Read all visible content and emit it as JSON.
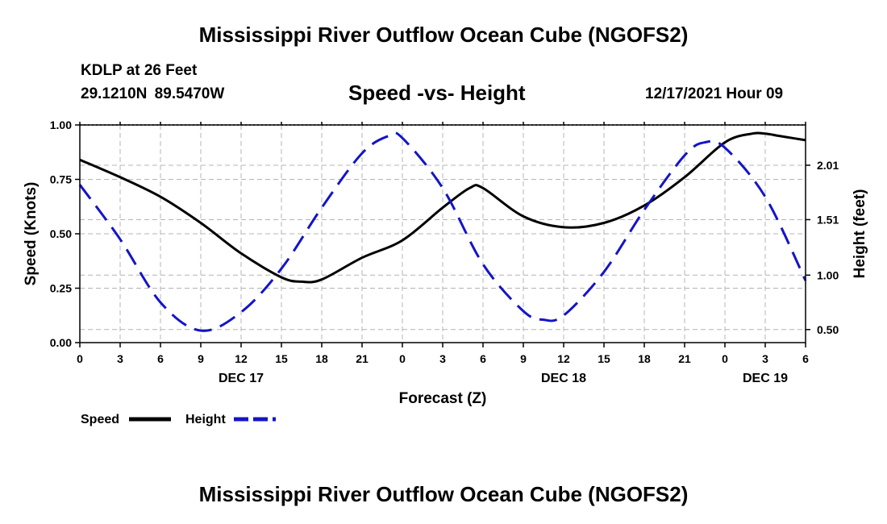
{
  "header": {
    "title": "Mississippi River Outflow Ocean Cube (NGOFS2)",
    "station": "KDLP at 26 Feet",
    "coords": "29.1210N  89.5470W",
    "subtitle": "Speed -vs- Height",
    "datetime": "12/17/2021 Hour 09"
  },
  "footer": {
    "title": "Mississippi River Outflow Ocean Cube (NGOFS2)"
  },
  "chart_data": {
    "type": "line",
    "xlabel": "Forecast (Z)",
    "ylabel_left": "Speed (Knots)",
    "ylabel_right": "Height (feet)",
    "x_range_hours": [
      0,
      54
    ],
    "x_tick_hours": [
      0,
      3,
      6,
      9,
      12,
      15,
      18,
      21,
      24,
      27,
      30,
      33,
      36,
      39,
      42,
      45,
      48,
      51,
      54
    ],
    "x_tick_labels": [
      "0",
      "3",
      "6",
      "9",
      "12",
      "15",
      "18",
      "21",
      "0",
      "3",
      "6",
      "9",
      "12",
      "15",
      "18",
      "21",
      "0",
      "3",
      "6"
    ],
    "day_labels": [
      {
        "hour": 12,
        "label": "DEC 17"
      },
      {
        "hour": 36,
        "label": "DEC 18"
      },
      {
        "hour": 51,
        "label": "DEC 19"
      }
    ],
    "ylim_left": [
      0,
      1
    ],
    "y_ticks_left": [
      0,
      0.25,
      0.5,
      0.75,
      1.0
    ],
    "y_tick_labels_left": [
      "0.00",
      "0.25",
      "0.50",
      "0.75",
      "1.00"
    ],
    "ylim_right": [
      0.38,
      2.38
    ],
    "y_ticks_right": [
      0.5,
      1.0,
      1.51,
      2.01
    ],
    "y_tick_labels_right": [
      "0.50",
      "1.00",
      "1.51",
      "2.01"
    ],
    "grid": true,
    "series": [
      {
        "name": "Speed",
        "axis": "left",
        "color": "#000000",
        "style": "solid",
        "x": [
          0,
          3,
          6,
          9,
          12,
          15,
          16.5,
          18,
          21,
          24,
          27,
          29,
          30,
          33,
          36,
          39,
          42,
          45,
          48,
          50,
          51,
          52,
          53,
          54
        ],
        "y": [
          0.84,
          0.76,
          0.67,
          0.55,
          0.41,
          0.3,
          0.28,
          0.29,
          0.39,
          0.47,
          0.62,
          0.71,
          0.71,
          0.58,
          0.53,
          0.55,
          0.63,
          0.76,
          0.92,
          0.96,
          0.96,
          0.95,
          0.94,
          0.93
        ]
      },
      {
        "name": "Height",
        "axis": "right",
        "color": "#1414c8",
        "style": "dashed",
        "x": [
          0,
          3,
          6,
          9,
          12,
          15,
          18,
          21,
          23,
          24,
          27,
          30,
          33,
          34.5,
          36,
          39,
          42,
          45,
          46.5,
          48,
          51,
          54
        ],
        "y": [
          1.83,
          1.33,
          0.75,
          0.49,
          0.66,
          1.06,
          1.62,
          2.12,
          2.28,
          2.26,
          1.8,
          1.1,
          0.67,
          0.59,
          0.63,
          1.03,
          1.6,
          2.1,
          2.22,
          2.17,
          1.72,
          0.95
        ]
      }
    ],
    "legend": [
      {
        "label": "Speed",
        "color": "#000000",
        "style": "solid"
      },
      {
        "label": "Height",
        "color": "#1414c8",
        "style": "dashed"
      }
    ],
    "legend_placement": "bottom-left"
  }
}
